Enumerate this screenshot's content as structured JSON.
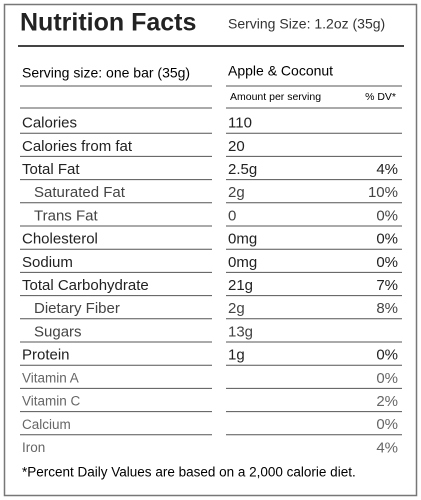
{
  "header": {
    "title": "Nutrition Facts",
    "serving_size": "Serving Size: 1.2oz (35g)"
  },
  "subheader": {
    "serving_label": "Serving size: one bar (35g)",
    "flavor": "Apple & Coconut",
    "amount_label": "Amount per serving",
    "dv_label": "% DV*"
  },
  "rows": [
    {
      "nutrient": "Calories",
      "amount": "110"
    },
    {
      "nutrient": "Calories from fat",
      "amount": "20"
    },
    {
      "nutrient": "Total Fat",
      "amount": "2.5g",
      "dv": "4%"
    },
    {
      "nutrient": "Saturated Fat",
      "amount": "2g",
      "dv": "10%"
    },
    {
      "nutrient": "Trans Fat",
      "amount": "0",
      "dv": "0%"
    },
    {
      "nutrient": "Cholesterol",
      "amount": "0mg",
      "dv": "0%"
    },
    {
      "nutrient": "Sodium",
      "amount": "0mg",
      "dv": "0%"
    },
    {
      "nutrient": "Total Carbohydrate",
      "amount": "21g",
      "dv": "7%"
    },
    {
      "nutrient": "Dietary Fiber",
      "amount": "2g",
      "dv": "8%"
    },
    {
      "nutrient": "Sugars",
      "amount": "13g"
    },
    {
      "nutrient": "Protein",
      "amount": "1g",
      "dv": "0%"
    },
    {
      "nutrient": "Vitamin A",
      "dv": "0%"
    },
    {
      "nutrient": "Vitamin C",
      "dv": "2%"
    },
    {
      "nutrient": "Calcium",
      "dv": "0%"
    },
    {
      "nutrient": "Iron",
      "dv": "4%"
    }
  ],
  "footnote": "*Percent Daily Values are based on a 2,000 calorie diet."
}
